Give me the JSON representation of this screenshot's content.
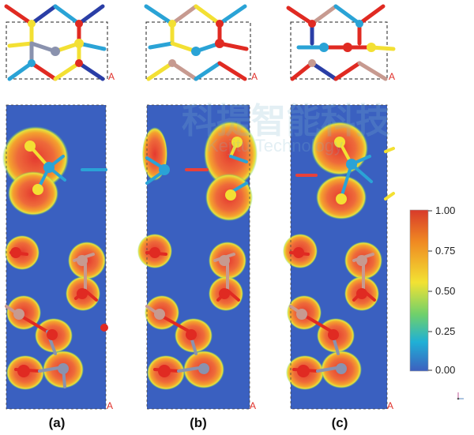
{
  "panels": [
    {
      "id": "a",
      "label": "(a)",
      "cell_mark": "A"
    },
    {
      "id": "b",
      "label": "(b)",
      "cell_mark": "A"
    },
    {
      "id": "c",
      "label": "(c)",
      "cell_mark": "A"
    }
  ],
  "colorbar": {
    "ticks": [
      "1.00",
      "0.75",
      "0.50",
      "0.25",
      "0.00"
    ],
    "colors": [
      "#d83a2a",
      "#f08a22",
      "#f2e233",
      "#6ed06c",
      "#1fb0d6",
      "#3d5fbf"
    ]
  },
  "watermark": {
    "line1": "科提智能科技",
    "line2": "Kejitu Technology"
  },
  "colors": {
    "map_background": "#3a60c0",
    "high_density": "#e8413a",
    "atom_red": "#e02a22",
    "atom_yellow": "#f3e033",
    "atom_blue": "#2aa3d6",
    "atom_pink": "#c79a90",
    "atom_slate": "#8a92ae"
  }
}
